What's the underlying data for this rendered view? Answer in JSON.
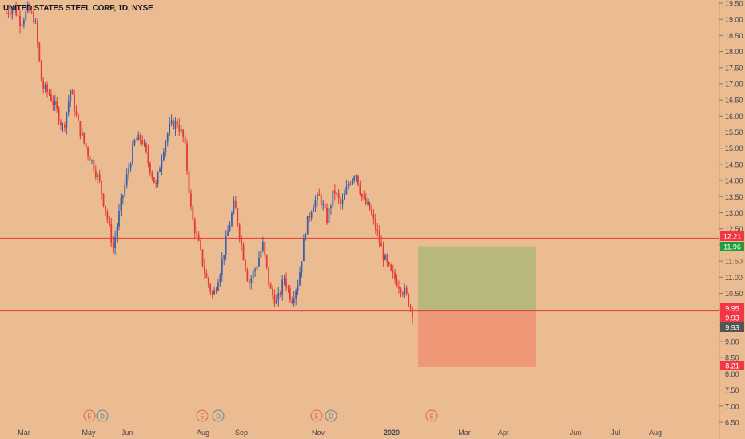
{
  "header": {
    "title": "UNITED STATES STEEL CORP, 1D, NYSE"
  },
  "colors": {
    "background": "#ebbb91",
    "up_candle": "#3b5fa8",
    "down_candle": "#e53935",
    "hline": "#e53935",
    "profit_zone": "#b8b87c",
    "loss_zone": "#ee9878",
    "axis_text": "#434651",
    "green_tag": "#1e9e3a",
    "red_tag": "#f23645",
    "grey_tag": "#555555",
    "event_earnings": "#e06652",
    "event_dividend": "#5a8a9a"
  },
  "chart_data": {
    "type": "candlestick",
    "symbol": "UNITED STATES STEEL CORP",
    "interval": "1D",
    "exchange": "NYSE",
    "y_axis": {
      "min": 6.5,
      "max": 19.5,
      "ticks": [
        6.5,
        7.0,
        7.5,
        8.0,
        8.5,
        9.0,
        9.5,
        10.0,
        10.5,
        11.0,
        11.5,
        12.0,
        12.5,
        13.0,
        13.5,
        14.0,
        14.5,
        15.0,
        15.5,
        16.0,
        16.5,
        17.0,
        17.5,
        18.0,
        18.5,
        19.0,
        19.5
      ]
    },
    "x_axis": {
      "labels": [
        "Mar",
        "May",
        "Jun",
        "Aug",
        "Sep",
        "Nov",
        "2020",
        "Mar",
        "Apr",
        "Jun",
        "Jul",
        "Aug"
      ]
    },
    "series_keypoints": [
      [
        "Mar",
        19.2
      ],
      [
        "Mar",
        19.4
      ],
      [
        "Mar",
        18.9
      ],
      [
        "Mar",
        19.3
      ],
      [
        "Apr",
        19.0
      ],
      [
        "Apr",
        16.9
      ],
      [
        "Apr",
        16.7
      ],
      [
        "Apr",
        16.2
      ],
      [
        "Apr",
        15.6
      ],
      [
        "May",
        16.8
      ],
      [
        "May",
        15.8
      ],
      [
        "May",
        15.1
      ],
      [
        "May",
        14.6
      ],
      [
        "May",
        14.0
      ],
      [
        "Jun",
        13.0
      ],
      [
        "Jun",
        11.9
      ],
      [
        "Jun",
        13.2
      ],
      [
        "Jun",
        14.2
      ],
      [
        "Jun",
        15.2
      ],
      [
        "Jul",
        15.3
      ],
      [
        "Jul",
        14.5
      ],
      [
        "Jul",
        13.8
      ],
      [
        "Jul",
        15.0
      ],
      [
        "Jul",
        15.7
      ],
      [
        "Aug",
        15.8
      ],
      [
        "Aug",
        15.2
      ],
      [
        "Aug",
        12.9
      ],
      [
        "Aug",
        12.0
      ],
      [
        "Aug",
        11.0
      ],
      [
        "Aug",
        10.4
      ],
      [
        "Sep",
        11.2
      ],
      [
        "Sep",
        12.3
      ],
      [
        "Sep",
        13.3
      ],
      [
        "Sep",
        12.0
      ],
      [
        "Sep",
        10.8
      ],
      [
        "Sep",
        11.3
      ],
      [
        "Oct",
        12.0
      ],
      [
        "Oct",
        10.6
      ],
      [
        "Oct",
        10.2
      ],
      [
        "Oct",
        11.0
      ],
      [
        "Oct",
        10.3
      ],
      [
        "Oct",
        10.9
      ],
      [
        "Oct",
        12.5
      ],
      [
        "Nov",
        13.3
      ],
      [
        "Nov",
        13.5
      ],
      [
        "Nov",
        12.8
      ],
      [
        "Nov",
        13.7
      ],
      [
        "Nov",
        13.2
      ],
      [
        "Dec",
        13.9
      ],
      [
        "Dec",
        14.3
      ],
      [
        "Dec",
        13.4
      ],
      [
        "Dec",
        13.1
      ],
      [
        "Dec",
        12.4
      ],
      [
        "Jan",
        11.6
      ],
      [
        "Jan",
        11.1
      ],
      [
        "Jan",
        10.8
      ],
      [
        "Jan",
        10.5
      ],
      [
        "Jan",
        9.93
      ]
    ],
    "horizontal_lines": [
      {
        "price": 12.21,
        "label": "12.21"
      },
      {
        "price": 9.95,
        "label": "9.95"
      }
    ],
    "position": {
      "entry": 9.93,
      "target": 11.96,
      "stop": 8.21
    },
    "price_tags": [
      {
        "price": 12.21,
        "label": "12.21",
        "kind": "red"
      },
      {
        "price": 11.96,
        "label": "11.96",
        "kind": "green"
      },
      {
        "price": 9.95,
        "label": "9.95",
        "kind": "red"
      },
      {
        "price": 9.93,
        "label": "9.93",
        "kind": "red"
      },
      {
        "price": 9.93,
        "label": "9.93",
        "kind": "grey"
      },
      {
        "price": 8.21,
        "label": "8.21",
        "kind": "red"
      }
    ],
    "events": [
      {
        "label": "E",
        "kind": "earnings"
      },
      {
        "label": "D",
        "kind": "dividend"
      },
      {
        "label": "E",
        "kind": "earnings"
      },
      {
        "label": "D",
        "kind": "dividend"
      },
      {
        "label": "E",
        "kind": "earnings"
      },
      {
        "label": "D",
        "kind": "dividend"
      },
      {
        "label": "E",
        "kind": "earnings"
      }
    ]
  }
}
